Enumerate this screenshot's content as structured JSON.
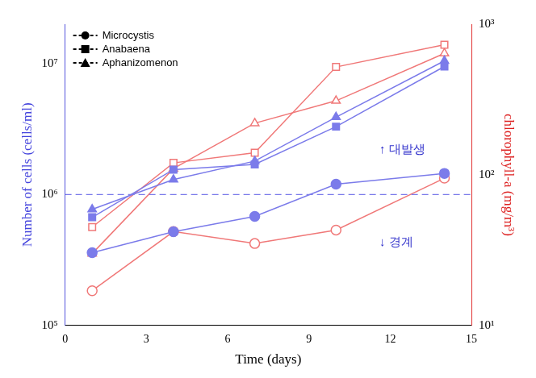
{
  "chart_data": {
    "type": "line",
    "x_label": "Time (days)",
    "y_label": "Number of cells (cells/ml)",
    "y2_label": "chlorophyll-a (mg/m³)",
    "xlim": [
      0,
      15
    ],
    "xticks": [
      0,
      3,
      6,
      9,
      12,
      15
    ],
    "ylim": [
      100000,
      20000000
    ],
    "yticks": [
      {
        "value": 100000,
        "label": "10⁵"
      },
      {
        "value": 1000000,
        "label": "10⁶"
      },
      {
        "value": 10000000,
        "label": "10⁷"
      }
    ],
    "y2lim": [
      10,
      1000
    ],
    "y2ticks": [
      {
        "value": 10,
        "label": "10¹"
      },
      {
        "value": 100,
        "label": "10²"
      },
      {
        "value": 1000,
        "label": "10³"
      }
    ],
    "log": "y",
    "grid": false,
    "legend": "top-left",
    "reference_line": 1000000,
    "annotations": [
      {
        "text": "↑ 대발생",
        "x": 11.6,
        "y": 2200000
      },
      {
        "text": "↓ 경계",
        "x": 11.6,
        "y": 430000
      }
    ],
    "x": [
      1,
      4,
      7,
      10,
      14
    ],
    "series": [
      {
        "name": "Microcystis",
        "color": "#7b7bea",
        "marker": "circle",
        "values": [
          360000,
          520000,
          680000,
          1200000,
          1450000
        ]
      },
      {
        "name": "Anabaena",
        "color": "#7b7bea",
        "marker": "square",
        "values": [
          670000,
          1550000,
          1700000,
          3300000,
          9500000
        ]
      },
      {
        "name": "Aphanizomenon",
        "color": "#7b7bea",
        "marker": "triangle",
        "values": [
          770000,
          1300000,
          1800000,
          3900000,
          10500000
        ]
      },
      {
        "name": "Microcystis",
        "color": "#f07878",
        "marker": "circle_open",
        "axis": "y2",
        "values": [
          17,
          42,
          35,
          43,
          95
        ]
      },
      {
        "name": "Anabaena",
        "color": "#f07878",
        "marker": "square_open",
        "axis": "y2",
        "values": [
          45,
          120,
          140,
          520,
          730
        ]
      },
      {
        "name": "Aphanizomenon",
        "color": "#f07878",
        "marker": "triangle_open",
        "axis": "y2",
        "values": [
          30,
          110,
          220,
          310,
          640
        ]
      }
    ]
  }
}
